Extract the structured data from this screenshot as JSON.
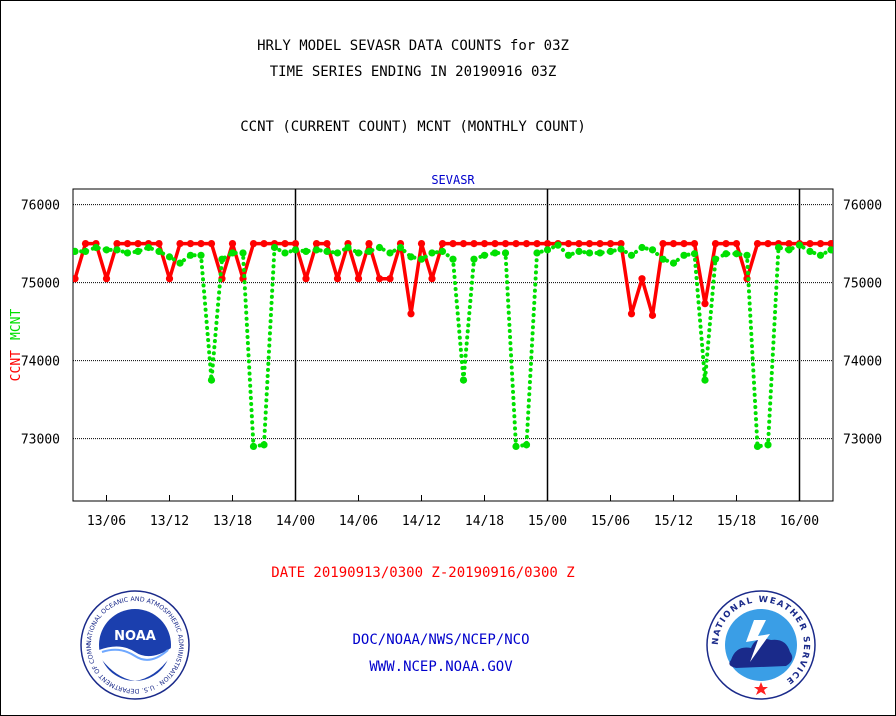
{
  "titles": {
    "line1": "HRLY MODEL SEVASR DATA COUNTS for 03Z",
    "line2": "TIME SERIES ENDING IN 20190916 03Z",
    "line3": "CCNT (CURRENT COUNT) MCNT (MONTHLY COUNT)"
  },
  "footer": {
    "date_range": "DATE 20190913/0300 Z-20190916/0300 Z",
    "org": "DOC/NOAA/NWS/NCEP/NCO",
    "url": "WWW.NCEP.NOAA.GOV"
  },
  "logos": {
    "noaa_text": "NOAA",
    "noaa_ring": "NATIONAL OCEANIC AND ATMOSPHERIC ADMINISTRATION · U.S. DEPARTMENT OF COMMERCE ·",
    "nws_ring": "NATIONAL WEATHER SERVICE"
  },
  "colors": {
    "ccnt": "#ff0000",
    "mcnt": "#00e000",
    "subtitle": "#0000cc",
    "date": "#ff0000",
    "footer_text": "#0000cc"
  },
  "chart_data": {
    "type": "line",
    "subtitle": "SEVASR",
    "ylabel_ccnt": "CCNT",
    "ylabel_mcnt": "MCNT",
    "ylim": [
      72200,
      76200
    ],
    "yticks": [
      73000,
      74000,
      75000,
      76000
    ],
    "xlim": [
      0,
      72
    ],
    "x_unit": "hours since 2019-09-13 03Z",
    "xtick_labels": [
      {
        "x": 3,
        "label": "13/06"
      },
      {
        "x": 9,
        "label": "13/12"
      },
      {
        "x": 15,
        "label": "13/18"
      },
      {
        "x": 21,
        "label": "14/00"
      },
      {
        "x": 27,
        "label": "14/06"
      },
      {
        "x": 33,
        "label": "14/12"
      },
      {
        "x": 39,
        "label": "14/18"
      },
      {
        "x": 45,
        "label": "15/00"
      },
      {
        "x": 51,
        "label": "15/06"
      },
      {
        "x": 57,
        "label": "15/12"
      },
      {
        "x": 63,
        "label": "15/18"
      },
      {
        "x": 69,
        "label": "16/00"
      }
    ],
    "day_dividers": [
      21,
      45,
      69
    ],
    "grid": true,
    "series": [
      {
        "name": "CCNT",
        "style": "solid",
        "values": [
          75050,
          75500,
          75500,
          75050,
          75500,
          75500,
          75500,
          75500,
          75500,
          75050,
          75500,
          75500,
          75500,
          75500,
          75050,
          75500,
          75050,
          75500,
          75500,
          75500,
          75500,
          75500,
          75050,
          75500,
          75500,
          75050,
          75500,
          75050,
          75500,
          75050,
          75050,
          75500,
          74600,
          75500,
          75050,
          75500,
          75500,
          75500,
          75500,
          75500,
          75500,
          75500,
          75500,
          75500,
          75500,
          75500,
          75500,
          75500,
          75500,
          75500,
          75500,
          75500,
          75500,
          74600,
          75050,
          74580,
          75500,
          75500,
          75500,
          75500,
          74730,
          75500,
          75500,
          75500,
          75050,
          75500,
          75500,
          75500,
          75500,
          75500,
          75500,
          75500,
          75500
        ]
      },
      {
        "name": "MCNT",
        "style": "dotted",
        "values": [
          75400,
          75400,
          75450,
          75420,
          75420,
          75380,
          75400,
          75450,
          75400,
          75330,
          75250,
          75350,
          75350,
          73750,
          75300,
          75380,
          75380,
          72900,
          72920,
          75450,
          75380,
          75420,
          75400,
          75420,
          75400,
          75380,
          75450,
          75380,
          75400,
          75450,
          75380,
          75450,
          75330,
          75300,
          75380,
          75400,
          75300,
          73750,
          75300,
          75350,
          75380,
          75380,
          72900,
          72920,
          75380,
          75420,
          75480,
          75350,
          75400,
          75380,
          75380,
          75400,
          75430,
          75350,
          75450,
          75420,
          75300,
          75250,
          75350,
          75370,
          73750,
          75300,
          75370,
          75370,
          75350,
          72900,
          72920,
          75450,
          75420,
          75480,
          75400,
          75350,
          75420
        ]
      }
    ]
  }
}
